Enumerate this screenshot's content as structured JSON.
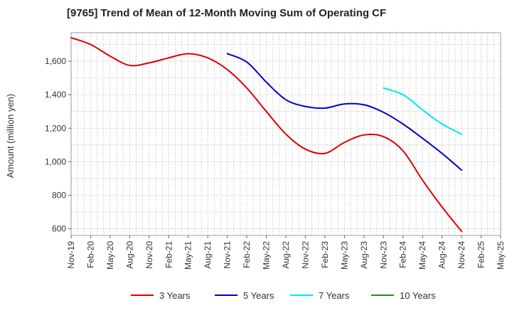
{
  "chart_data": {
    "type": "line",
    "title": "[9765]  Trend of Mean of 12-Month Moving Sum of Operating CF",
    "xlabel": "",
    "ylabel": "Amount (million yen)",
    "ylim": [
      560,
      1770
    ],
    "yticks": [
      600,
      800,
      1000,
      1200,
      1400,
      1600
    ],
    "ytick_labels": [
      "600",
      "800",
      "1,000",
      "1,200",
      "1,400",
      "1,600"
    ],
    "grid": true,
    "legend_position": "bottom",
    "x_categories": [
      "Nov-19",
      "Feb-20",
      "May-20",
      "Aug-20",
      "Nov-20",
      "Feb-21",
      "May-21",
      "Aug-21",
      "Nov-21",
      "Feb-22",
      "May-22",
      "Aug-22",
      "Nov-22",
      "Feb-23",
      "May-23",
      "Aug-23",
      "Nov-23",
      "Feb-24",
      "May-24",
      "Aug-24",
      "Nov-24",
      "Feb-25",
      "May-25"
    ],
    "series": [
      {
        "name": "3 Years",
        "color": "#dd0000",
        "points": [
          [
            0,
            1740
          ],
          [
            1,
            1700
          ],
          [
            2,
            1630
          ],
          [
            3,
            1575
          ],
          [
            4,
            1590
          ],
          [
            5,
            1620
          ],
          [
            6,
            1645
          ],
          [
            7,
            1620
          ],
          [
            8,
            1550
          ],
          [
            9,
            1440
          ],
          [
            10,
            1300
          ],
          [
            11,
            1165
          ],
          [
            12,
            1075
          ],
          [
            13,
            1050
          ],
          [
            14,
            1115
          ],
          [
            15,
            1160
          ],
          [
            16,
            1150
          ],
          [
            17,
            1065
          ],
          [
            18,
            890
          ],
          [
            19,
            730
          ],
          [
            20,
            585
          ]
        ]
      },
      {
        "name": "5 Years",
        "color": "#0000cc",
        "points": [
          [
            8,
            1645
          ],
          [
            9,
            1595
          ],
          [
            10,
            1475
          ],
          [
            11,
            1370
          ],
          [
            12,
            1330
          ],
          [
            13,
            1320
          ],
          [
            14,
            1345
          ],
          [
            15,
            1340
          ],
          [
            16,
            1295
          ],
          [
            17,
            1225
          ],
          [
            18,
            1140
          ],
          [
            19,
            1050
          ],
          [
            20,
            950
          ]
        ]
      },
      {
        "name": "7 Years",
        "color": "#00e8e8",
        "points": [
          [
            16,
            1440
          ],
          [
            17,
            1400
          ],
          [
            18,
            1310
          ],
          [
            19,
            1225
          ],
          [
            20,
            1165
          ]
        ]
      },
      {
        "name": "10 Years",
        "color": "#228b22",
        "points": []
      }
    ]
  }
}
